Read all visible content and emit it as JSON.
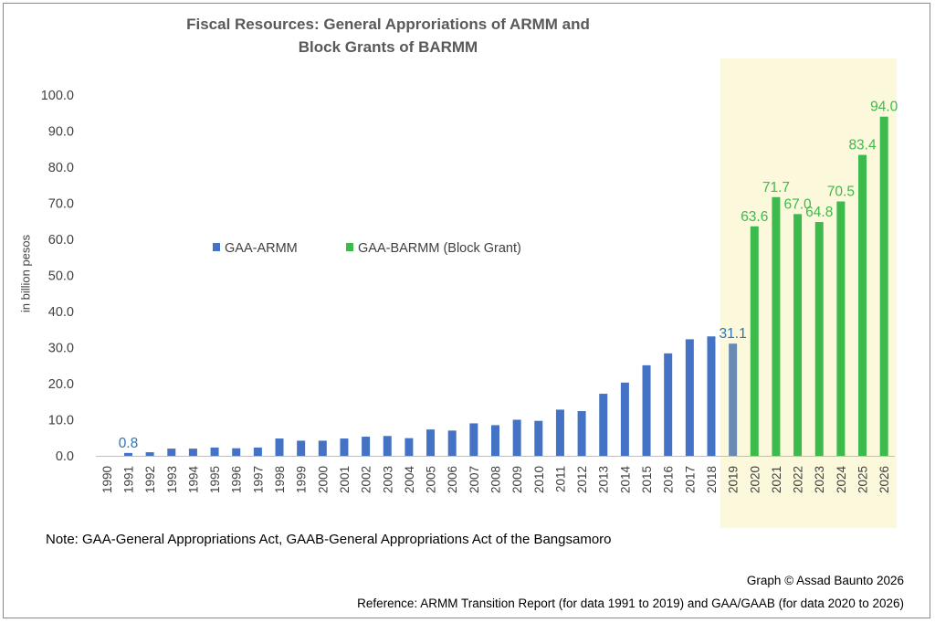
{
  "chart_data": {
    "type": "bar",
    "title_lines": [
      "Fiscal Resources: General Approriations of ARMM and",
      "Block Grants of BARMM"
    ],
    "ylabel": "in billion pesos",
    "xlabel": "",
    "ylim": [
      0,
      100
    ],
    "yticks": [
      "0.0",
      "10.0",
      "20.0",
      "30.0",
      "40.0",
      "50.0",
      "60.0",
      "70.0",
      "80.0",
      "90.0",
      "100.0"
    ],
    "grid": false,
    "legend_placement": "center-left",
    "categories": [
      "1990",
      "1991",
      "1992",
      "1993",
      "1994",
      "1995",
      "1996",
      "1997",
      "1998",
      "1999",
      "2000",
      "2001",
      "2002",
      "2003",
      "2004",
      "2005",
      "2006",
      "2007",
      "2008",
      "2009",
      "2010",
      "2011",
      "2012",
      "2013",
      "2014",
      "2015",
      "2016",
      "2017",
      "2018",
      "2019",
      "2020",
      "2021",
      "2022",
      "2023",
      "2024",
      "2025",
      "2026"
    ],
    "series": [
      {
        "name": "GAA-ARMM",
        "color": "#4472c4",
        "values": [
          null,
          0.8,
          1.0,
          2.0,
          2.0,
          2.3,
          2.1,
          2.3,
          4.8,
          4.2,
          4.2,
          4.8,
          5.3,
          5.5,
          4.9,
          7.3,
          7.0,
          9.0,
          8.5,
          10.0,
          9.7,
          12.8,
          12.4,
          17.2,
          20.3,
          25.1,
          28.4,
          32.3,
          33.1,
          31.1,
          null,
          null,
          null,
          null,
          null,
          null,
          null
        ]
      },
      {
        "name": "GAA-BARMM (Block Grant)",
        "color": "#3dba4c",
        "values": [
          null,
          null,
          null,
          null,
          null,
          null,
          null,
          null,
          null,
          null,
          null,
          null,
          null,
          null,
          null,
          null,
          null,
          null,
          null,
          null,
          null,
          null,
          null,
          null,
          null,
          null,
          null,
          null,
          null,
          null,
          63.6,
          71.7,
          67.0,
          64.8,
          70.5,
          83.4,
          94.0
        ]
      }
    ],
    "highlight_bar": {
      "category": "2019",
      "color": "#6a8ab3"
    },
    "shaded_region": {
      "from": "2019",
      "to": "2026",
      "color": "#fbf8dc"
    },
    "data_labels": [
      {
        "category": "1991",
        "text": "0.8",
        "color": "#2e75b6"
      },
      {
        "category": "2019",
        "text": "31.1",
        "color": "#2e75b6"
      },
      {
        "category": "2020",
        "text": "63.6",
        "color": "#3dba4c"
      },
      {
        "category": "2021",
        "text": "71.7",
        "color": "#3dba4c"
      },
      {
        "category": "2022",
        "text": "67.0",
        "color": "#3dba4c"
      },
      {
        "category": "2023",
        "text": "64.8",
        "color": "#3dba4c"
      },
      {
        "category": "2024",
        "text": "70.5",
        "color": "#3dba4c"
      },
      {
        "category": "2025",
        "text": "83.4",
        "color": "#3dba4c"
      },
      {
        "category": "2026",
        "text": "94.0",
        "color": "#3dba4c"
      }
    ]
  },
  "footer": {
    "note": "Note: GAA-General Appropriations Act, GAAB-General Appropriations Act of the Bangsamoro",
    "credit": "Graph © Assad Baunto 2026",
    "reference": "Reference: ARMM Transition Report (for data 1991 to 2019) and GAA/GAAB (for data 2020 to 2026)"
  }
}
